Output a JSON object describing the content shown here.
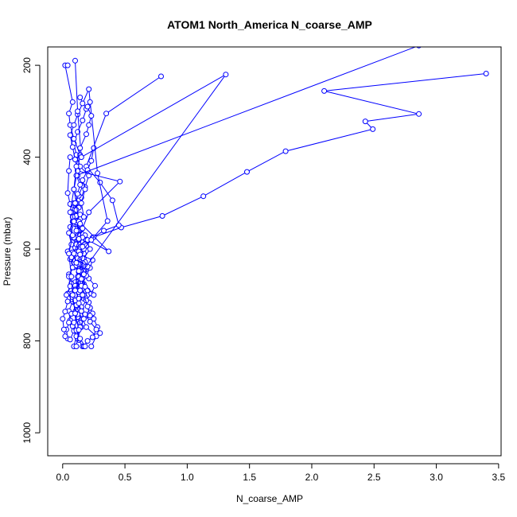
{
  "chart_data": {
    "type": "scatter",
    "title": "ATOM1 North_America N_coarse_AMP",
    "xlabel": "N_coarse_AMP",
    "ylabel": "Pressure (mbar)",
    "xlim": [
      -0.12,
      3.52
    ],
    "ylim": [
      1050,
      160
    ],
    "y_reversed": true,
    "grid": false,
    "legend": "none",
    "series_color": "#0000ff",
    "x_ticks": [
      0.0,
      0.5,
      1.0,
      1.5,
      2.0,
      2.5,
      3.0,
      3.5
    ],
    "x_tick_labels": [
      "0.0",
      "0.5",
      "1.0",
      "1.5",
      "2.0",
      "2.5",
      "3.0",
      "3.5"
    ],
    "y_ticks": [
      200,
      400,
      600,
      800,
      1000
    ],
    "y_tick_labels": [
      "200",
      "400",
      "600",
      "800",
      "1000"
    ],
    "series": [
      {
        "style": "line+points",
        "x": [
          0.16,
          0.13,
          0.11,
          0.14,
          0.19,
          0.22,
          0.17,
          0.12,
          0.1,
          0.13,
          0.09,
          0.12,
          0.11,
          0.08,
          0.06,
          0.1,
          0.13,
          0.15,
          0.18,
          0.21,
          0.14,
          0.11,
          0.09,
          0.12,
          0.16,
          0.19,
          0.14
        ],
        "y": [
          812,
          798,
          780,
          760,
          745,
          728,
          708,
          690,
          672,
          650,
          630,
          612,
          595,
          575,
          552,
          530,
          510,
          488,
          465,
          440,
          420,
          395,
          370,
          345,
          320,
          295,
          270
        ]
      },
      {
        "style": "line+points",
        "x": [
          0.23,
          0.27,
          0.19,
          0.16,
          0.12,
          0.09,
          0.07,
          0.11,
          0.15,
          0.13,
          0.1,
          0.08,
          0.12,
          0.18,
          0.14,
          0.11,
          0.09,
          0.13,
          0.16,
          0.12
        ],
        "y": [
          812,
          790,
          770,
          752,
          735,
          716,
          697,
          680,
          662,
          643,
          625,
          607,
          588,
          570,
          548,
          528,
          505,
          484,
          462,
          440
        ]
      },
      {
        "style": "line+points",
        "x": [
          0.04,
          0.03,
          0.06,
          0.05,
          0.08,
          0.04,
          0.07,
          0.05,
          0.09,
          0.06,
          0.04,
          0.07,
          0.05,
          0.08,
          0.06,
          0.04,
          0.05,
          0.06
        ],
        "y": [
          795,
          775,
          755,
          735,
          714,
          697,
          675,
          655,
          640,
          622,
          605,
          590,
          565,
          540,
          502,
          478,
          430,
          400
        ]
      },
      {
        "style": "line+points",
        "x": [
          0.3,
          0.28,
          0.25,
          0.24,
          0.22,
          0.21,
          0.18,
          0.2,
          0.17,
          0.15,
          0.18,
          0.14,
          0.12,
          0.16,
          0.13,
          0.11,
          0.14,
          0.1,
          0.08,
          0.11,
          0.09
        ],
        "y": [
          783,
          770,
          752,
          740,
          728,
          716,
          705,
          690,
          676,
          660,
          646,
          632,
          620,
          605,
          590,
          575,
          560,
          546,
          530,
          515,
          500
        ]
      },
      {
        "style": "line+points",
        "x": [
          0.17,
          0.2,
          0.24,
          0.27,
          0.22,
          0.18,
          0.15,
          0.19,
          0.23,
          0.26,
          0.21,
          0.17,
          0.14,
          0.12,
          0.15,
          0.18,
          0.16,
          0.13,
          0.11,
          0.14
        ],
        "y": [
          812,
          800,
          792,
          775,
          758,
          742,
          728,
          712,
          697,
          680,
          664,
          648,
          634,
          620,
          606,
          590,
          575,
          560,
          542,
          525
        ]
      },
      {
        "style": "line+points",
        "x": [
          0.02,
          0.01,
          0.0,
          0.02,
          0.04,
          0.03,
          0.06,
          0.05,
          0.08,
          0.07
        ],
        "y": [
          790,
          775,
          752,
          736,
          714,
          700,
          681,
          660,
          640,
          618
        ]
      },
      {
        "style": "line+points",
        "x": [
          0.12,
          0.15,
          0.11,
          0.08,
          0.1,
          0.13,
          0.17,
          0.22,
          0.19,
          0.24,
          0.47,
          0.8,
          1.13,
          1.48,
          1.79,
          2.49,
          2.43,
          2.86,
          2.1,
          3.4
        ],
        "y": [
          795,
          770,
          740,
          710,
          680,
          650,
          620,
          600,
          580,
          575,
          553,
          528,
          485,
          432,
          387,
          339,
          322,
          306,
          256,
          218
        ]
      },
      {
        "style": "line+points",
        "x": [
          0.06,
          0.09,
          0.05,
          0.07,
          0.11,
          0.08,
          0.1,
          0.13,
          0.15,
          0.18,
          0.17,
          0.19,
          0.25,
          0.33,
          0.45,
          0.4,
          0.3,
          0.19,
          0.35,
          0.79
        ],
        "y": [
          797,
          778,
          760,
          741,
          722,
          705,
          688,
          670,
          650,
          628,
          610,
          593,
          574,
          560,
          548,
          494,
          455,
          420,
          305,
          224
        ]
      },
      {
        "style": "line+points",
        "x": [
          0.09,
          0.11,
          0.08,
          0.12,
          0.14,
          0.1,
          0.13,
          0.16,
          0.19,
          0.22,
          0.24,
          0.14,
          0.1,
          0.2,
          0.37,
          0.13,
          0.11,
          0.09,
          0.12,
          0.14,
          0.09,
          0.06,
          0.05,
          0.08,
          0.02,
          0.04
        ],
        "y": [
          812,
          790,
          768,
          748,
          730,
          712,
          694,
          676,
          658,
          641,
          624,
          612,
          597,
          580,
          605,
          540,
          500,
          470,
          428,
          395,
          360,
          330,
          305,
          280,
          200,
          200
        ]
      },
      {
        "style": "line+points",
        "x": [
          0.18,
          0.14,
          0.11,
          0.09,
          0.12,
          0.15,
          0.13,
          0.1,
          0.14,
          0.17,
          0.2,
          0.16,
          0.13,
          0.11,
          0.09,
          0.12,
          0.14,
          0.17,
          0.15,
          0.18,
          0.16,
          0.2,
          0.23,
          0.25
        ],
        "y": [
          812,
          795,
          777,
          760,
          742,
          726,
          708,
          690,
          672,
          655,
          638,
          620,
          605,
          590,
          575,
          560,
          545,
          530,
          500,
          470,
          450,
          428,
          408,
          380
        ]
      },
      {
        "style": "line+points",
        "x": [
          0.25,
          0.14,
          0.11,
          0.09,
          0.13,
          0.16,
          0.21,
          0.46,
          0.12,
          0.1,
          0.08,
          0.06,
          0.09,
          0.12,
          0.16,
          0.21,
          0.28,
          0.36,
          0.23,
          0.17,
          0.12,
          0.14
        ],
        "y": [
          700,
          665,
          636,
          610,
          580,
          555,
          520,
          453,
          430,
          405,
          378,
          352,
          330,
          307,
          283,
          252,
          435,
          539,
          580,
          600,
          660,
          690
        ]
      },
      {
        "style": "line+points",
        "x": [
          0.22,
          0.2,
          0.17,
          0.15,
          0.13,
          1.31,
          0.15,
          0.12,
          0.1
        ],
        "y": [
          745,
          725,
          700,
          680,
          660,
          220,
          400,
          300,
          190
        ]
      },
      {
        "style": "line+points",
        "x": [
          0.14,
          0.17,
          0.15,
          0.13,
          0.16,
          0.18,
          0.15,
          0.13,
          0.11,
          0.14,
          0.16,
          0.13,
          0.11,
          0.09,
          0.07,
          0.1,
          0.12,
          0.14,
          0.11,
          2.86
        ],
        "y": [
          770,
          752,
          735,
          718,
          700,
          682,
          665,
          648,
          630,
          612,
          595,
          578,
          560,
          540,
          520,
          500,
          480,
          460,
          440,
          157
        ]
      },
      {
        "style": "line+points",
        "x": [
          0.11,
          0.13,
          0.1,
          0.08,
          0.07,
          0.05,
          0.08,
          0.06,
          0.09,
          0.11,
          0.14,
          0.19,
          0.21,
          0.23,
          0.2,
          0.22
        ],
        "y": [
          812,
          776,
          740,
          700,
          660,
          610,
          570,
          520,
          470,
          420,
          380,
          350,
          330,
          310,
          290,
          280
        ]
      }
    ]
  }
}
